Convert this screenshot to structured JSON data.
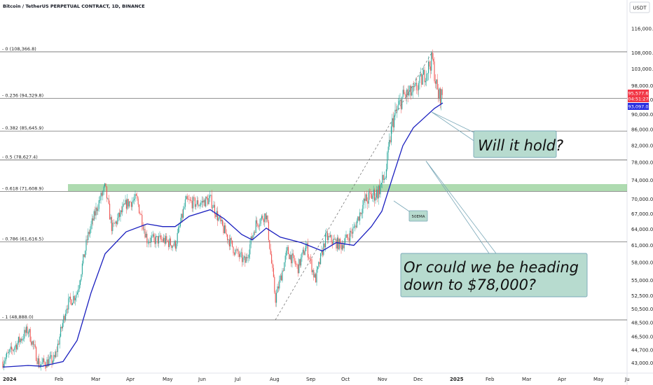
{
  "header": {
    "title": "Bitcoin / TetherUS PERPETUAL CONTRACT, 1D, BINANCE",
    "currency": "USDT"
  },
  "colors": {
    "up": "#26a69a",
    "down": "#ef5350",
    "ema": "#1a1fbf",
    "fib_line": "#555555",
    "support_zone": "#4caf50",
    "callout_fill": "#b7dbcf",
    "callout_border": "#7aa8b8",
    "price_label_red": "#f23645",
    "price_label_blue": "#2a2ee0"
  },
  "chart_data": {
    "type": "candlestick",
    "title": "Bitcoin / TetherUS PERPETUAL CONTRACT, 1D, BINANCE",
    "y_axis": {
      "currency": "USDT",
      "ticks": [
        "116,000.0",
        "108,000.0",
        "103,000.0",
        "98,000.0",
        "94,000.0",
        "90,000.0",
        "86,000.0",
        "82,000.0",
        "78,000.0",
        "74,000.0",
        "70,000.0",
        "67,000.0",
        "64,000.0",
        "61,000.0",
        "58,000.0",
        "55,000.0",
        "52,500.0",
        "50,500.0",
        "48,500.0",
        "46,500.0",
        "44,700.0",
        "43,000.0"
      ]
    },
    "x_axis": {
      "ticks": [
        "2024",
        "Feb",
        "Mar",
        "Apr",
        "May",
        "Jun",
        "Jul",
        "Aug",
        "Sep",
        "Oct",
        "Nov",
        "Dec",
        "2025",
        "Feb",
        "Mar",
        "Apr",
        "May",
        "Ju"
      ]
    },
    "fib_levels": [
      {
        "label": "0 (108,366.8)",
        "price": 108366.8
      },
      {
        "label": "0.236 (94,329.8)",
        "price": 94329.8
      },
      {
        "label": "0.382 (85,645.9)",
        "price": 85645.9
      },
      {
        "label": "0.5 (78,627.4)",
        "price": 78627.4
      },
      {
        "label": "0.618 (71,608.9)",
        "price": 71608.9
      },
      {
        "label": "0.786 (61,616.5)",
        "price": 61616.5
      },
      {
        "label": "1 (48,888.0)",
        "price": 48888.0
      }
    ],
    "price_labels": {
      "last_price": "95,577.6",
      "countdown": "04:51:27",
      "ema_value": "93,097.0"
    },
    "series": [
      {
        "name": "50EMA"
      }
    ],
    "annotations": {
      "ema_tag": "50EMA",
      "callout_1": "Will it hold?",
      "callout_2_line1": "Or could we be heading",
      "callout_2_line2": "down to $78,000?"
    }
  }
}
